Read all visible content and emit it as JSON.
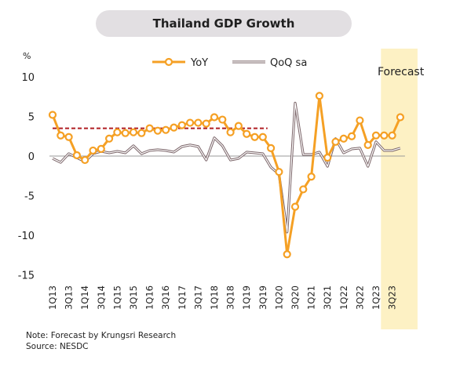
{
  "chart_data": {
    "type": "line",
    "title": "Thailand GDP Growth",
    "ylabel": "%",
    "ylim": [
      -15,
      10
    ],
    "yticks": [
      10,
      5,
      0,
      -5,
      -10,
      -15
    ],
    "grid": false,
    "legend_position": "top",
    "forecast_label": "Forecast",
    "forecast_start_index": 41,
    "dashed_line_value": 3.5,
    "dashed_line_span": [
      0,
      26
    ],
    "tick_labels": [
      "1Q13",
      "3Q13",
      "1Q14",
      "3Q14",
      "1Q15",
      "3Q15",
      "1Q16",
      "3Q16",
      "1Q17",
      "3Q17",
      "1Q18",
      "3Q18",
      "1Q19",
      "3Q19",
      "1Q20",
      "3Q20",
      "1Q21",
      "3Q21",
      "1Q22",
      "3Q22",
      "1Q23",
      "3Q23"
    ],
    "x": [
      "1Q13",
      "2Q13",
      "3Q13",
      "4Q13",
      "1Q14",
      "2Q14",
      "3Q14",
      "4Q14",
      "1Q15",
      "2Q15",
      "3Q15",
      "4Q15",
      "1Q16",
      "2Q16",
      "3Q16",
      "4Q16",
      "1Q17",
      "2Q17",
      "3Q17",
      "4Q17",
      "1Q18",
      "2Q18",
      "3Q18",
      "4Q18",
      "1Q19",
      "2Q19",
      "3Q19",
      "4Q19",
      "1Q20",
      "2Q20",
      "3Q20",
      "4Q20",
      "1Q21",
      "2Q21",
      "3Q21",
      "4Q21",
      "1Q22",
      "2Q22",
      "3Q22",
      "4Q22",
      "1Q23",
      "2Q23",
      "3Q23",
      "4Q23"
    ],
    "series": [
      {
        "name": "YoY",
        "color": "#f5a024",
        "values": [
          5.2,
          2.6,
          2.4,
          0.1,
          -0.5,
          0.7,
          0.9,
          2.2,
          3.0,
          2.9,
          3.0,
          2.9,
          3.5,
          3.2,
          3.3,
          3.6,
          3.9,
          4.2,
          4.2,
          4.1,
          4.9,
          4.6,
          3.0,
          3.8,
          2.8,
          2.4,
          2.4,
          1.0,
          -2.0,
          -12.4,
          -6.4,
          -4.2,
          -2.6,
          7.6,
          -0.2,
          1.8,
          2.2,
          2.5,
          4.5,
          1.4,
          2.6,
          2.6,
          2.6,
          4.9
        ]
      },
      {
        "name": "QoQ sa",
        "color": "#7a6468",
        "values": [
          -0.3,
          -0.8,
          0.3,
          -0.2,
          -0.7,
          0.3,
          0.6,
          0.4,
          0.6,
          0.4,
          1.3,
          0.3,
          0.7,
          0.8,
          0.7,
          0.5,
          1.2,
          1.4,
          1.2,
          -0.5,
          2.3,
          1.3,
          -0.5,
          -0.3,
          0.5,
          0.4,
          0.3,
          -1.4,
          -2.3,
          -9.6,
          6.7,
          0.2,
          0.2,
          0.5,
          -1.3,
          2.2,
          0.4,
          0.9,
          1.0,
          -1.3,
          1.8,
          0.7,
          0.7,
          1.0
        ]
      }
    ]
  },
  "notes": {
    "line1": "Note: Forecast by Krungsri Research",
    "line2": "Source: NESDC"
  }
}
